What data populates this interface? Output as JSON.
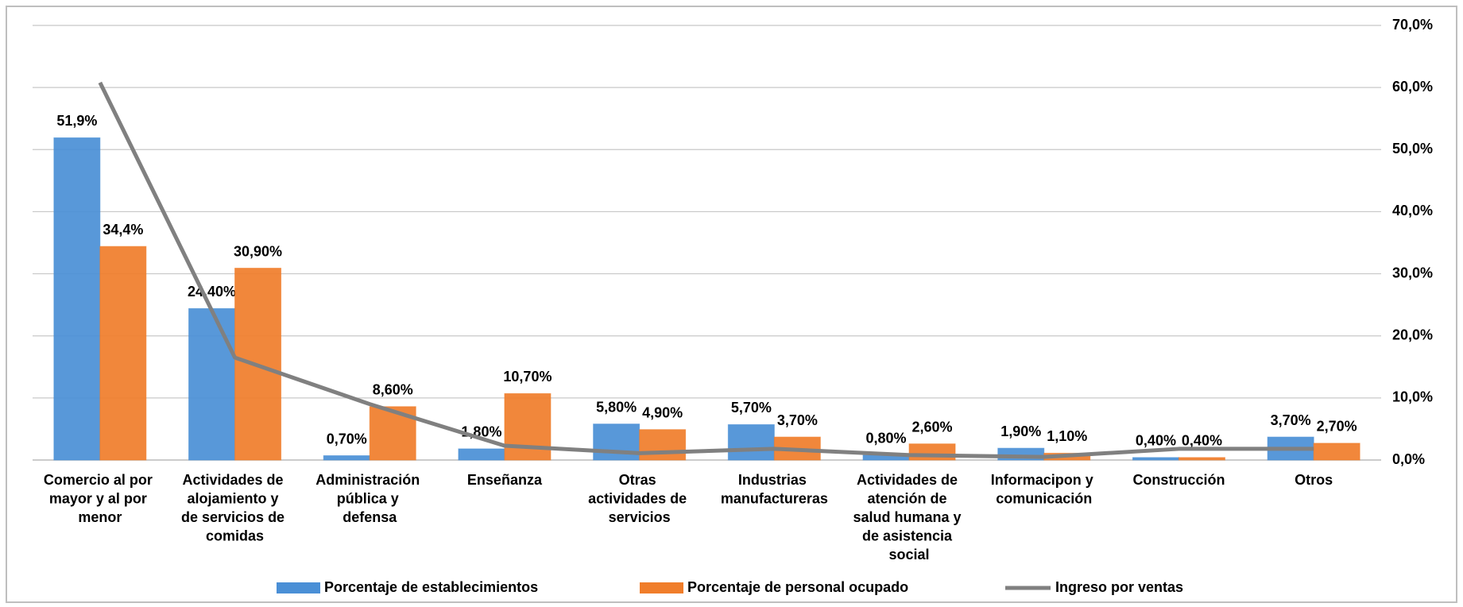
{
  "chart_data": {
    "type": "bar",
    "categories": [
      "Comercio al por mayor y al por menor",
      "Actividades de alojamiento y de servicios de comidas",
      "Administración pública y defensa",
      "Enseñanza",
      "Otras actividades de servicios",
      "Industrias manufactureras",
      "Actividades de atención de salud humana y de asistencia social",
      "Informacipon y comunicación",
      "Construcción",
      "Otros"
    ],
    "series": [
      {
        "name": "Porcentaje de establecimientos",
        "color": "#4a8fd6",
        "type": "bar",
        "values": [
          51.9,
          24.4,
          0.7,
          1.8,
          5.8,
          5.7,
          0.8,
          1.9,
          0.4,
          3.7
        ],
        "value_labels": [
          "51,9%",
          "24,40%",
          "0,70%",
          "1,80%",
          "5,80%",
          "5,70%",
          "0,80%",
          "1,90%",
          "0,40%",
          "3,70%"
        ]
      },
      {
        "name": "Porcentaje de personal ocupado",
        "color": "#f07d2a",
        "type": "bar",
        "values": [
          34.4,
          30.9,
          8.6,
          10.7,
          4.9,
          3.7,
          2.6,
          1.1,
          0.4,
          2.7
        ],
        "value_labels": [
          "34,4%",
          "30,90%",
          "8,60%",
          "10,70%",
          "4,90%",
          "3,70%",
          "2,60%",
          "1,10%",
          "0,40%",
          "2,70%"
        ]
      },
      {
        "name": "Ingreso por ventas",
        "color": "#808080",
        "type": "line",
        "values": [
          60.8,
          16.5,
          9.0,
          2.3,
          1.1,
          1.8,
          0.8,
          0.5,
          1.8,
          1.8
        ]
      }
    ],
    "ylim": [
      0,
      70
    ],
    "yticks": [
      {
        "value": 0,
        "label": "0,0%"
      },
      {
        "value": 10,
        "label": "10,0%"
      },
      {
        "value": 20,
        "label": "20,0%"
      },
      {
        "value": 30,
        "label": "30,0%"
      },
      {
        "value": 40,
        "label": "40,0%"
      },
      {
        "value": 50,
        "label": "50,0%"
      },
      {
        "value": 60,
        "label": "60,0%"
      },
      {
        "value": 70,
        "label": "70,0%"
      }
    ],
    "grid": true,
    "legend": "bottom"
  }
}
